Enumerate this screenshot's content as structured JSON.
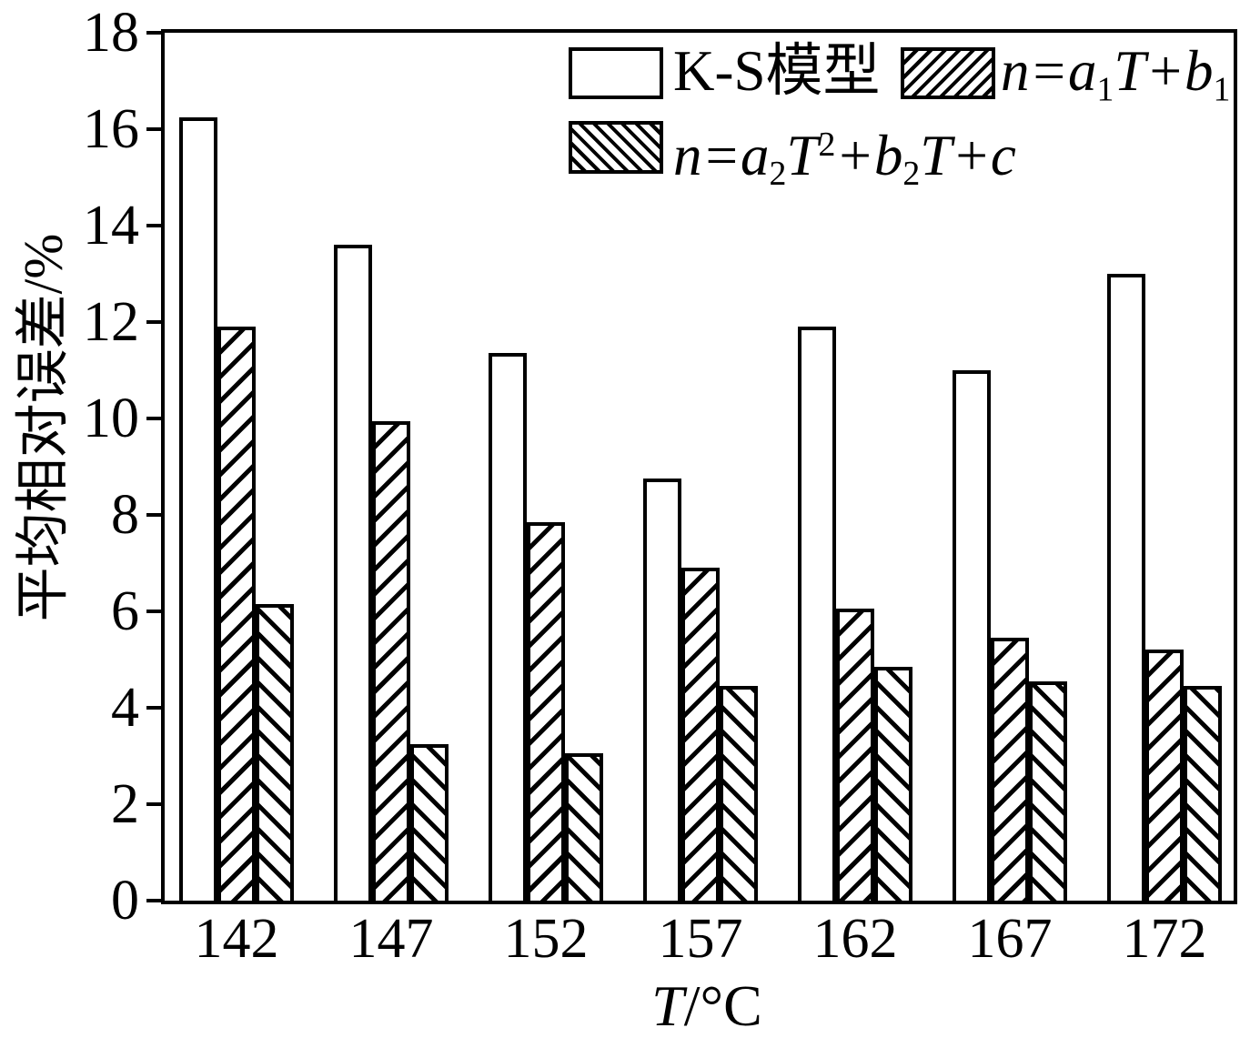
{
  "colors": {
    "background": "#ffffff",
    "stroke": "#000000",
    "bar_fill": "#ffffff",
    "text": "#000000"
  },
  "y_axis": {
    "title": "平均相对误差/%",
    "ticks": [
      0,
      2,
      4,
      6,
      8,
      10,
      12,
      14,
      16,
      18
    ]
  },
  "x_axis": {
    "title_segments": [
      {
        "text": "T",
        "style": "italic"
      },
      {
        "text": "/°C"
      }
    ],
    "categories": [
      "142",
      "147",
      "152",
      "157",
      "162",
      "167",
      "172"
    ]
  },
  "legend": {
    "entries": [
      {
        "pattern": "plain",
        "segments": [
          {
            "text": "K-S模型"
          }
        ]
      },
      {
        "pattern": "fwd",
        "segments": [
          {
            "text": "n=a",
            "style": "italic"
          },
          {
            "text": "1",
            "style": "sub"
          },
          {
            "text": "T+b",
            "style": "italic"
          },
          {
            "text": "1",
            "style": "sub"
          }
        ]
      },
      {
        "pattern": "bwd",
        "segments": [
          {
            "text": "n=a",
            "style": "italic"
          },
          {
            "text": "2",
            "style": "sub"
          },
          {
            "text": "T",
            "style": "italic"
          },
          {
            "text": "2",
            "style": "sup"
          },
          {
            "text": "+b",
            "style": "italic"
          },
          {
            "text": "2",
            "style": "sub"
          },
          {
            "text": "T+c",
            "style": "italic"
          }
        ]
      }
    ]
  },
  "chart_data": {
    "type": "bar",
    "title": "",
    "xlabel": "T/°C",
    "ylabel": "平均相对误差/%",
    "categories": [
      142,
      147,
      152,
      157,
      162,
      167,
      172
    ],
    "series": [
      {
        "name": "K-S模型",
        "key": "ks",
        "pattern": "plain",
        "values": [
          16.25,
          13.6,
          11.35,
          8.75,
          11.9,
          11.0,
          13.0
        ]
      },
      {
        "name": "n=a₁T+b₁",
        "key": "linear",
        "pattern": "fwd",
        "values": [
          11.9,
          9.95,
          7.85,
          6.9,
          6.05,
          5.45,
          5.2
        ]
      },
      {
        "name": "n=a₂T²+b₂T+c",
        "key": "quadratic",
        "pattern": "bwd",
        "values": [
          6.15,
          3.25,
          3.05,
          4.45,
          4.85,
          4.55,
          4.45
        ]
      }
    ],
    "ylim": [
      0,
      18
    ],
    "ytick_step": 2,
    "grid": false,
    "legend_position": "top-inside",
    "bar_fill": "white-with-hatch-patterns"
  }
}
